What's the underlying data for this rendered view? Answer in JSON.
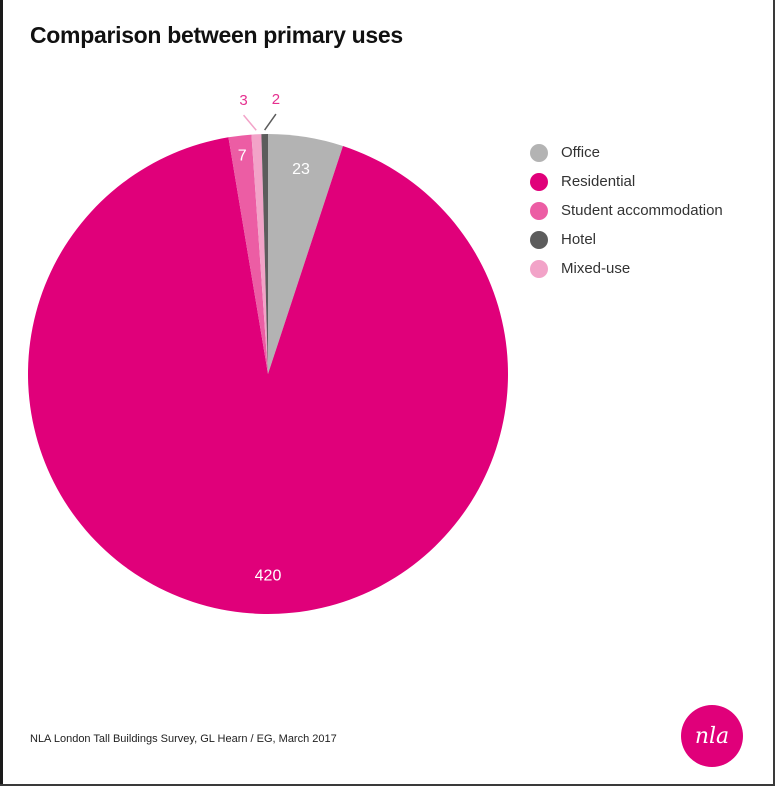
{
  "chart_data": {
    "type": "pie",
    "title": "Comparison between primary uses",
    "categories": [
      "Office",
      "Residential",
      "Student accommodation",
      "Hotel",
      "Mixed-use"
    ],
    "values": [
      23,
      420,
      7,
      2,
      3
    ],
    "slice_order": [
      "Office",
      "Residential",
      "Student accommodation",
      "Mixed-use",
      "Hotel"
    ],
    "data_labels": [
      "23",
      "420",
      "7",
      "2",
      "3"
    ],
    "colors": {
      "Office": "#b3b3b3",
      "Residential": "#e0007a",
      "Student accommodation": "#ec5da4",
      "Hotel": "#5c5c5c",
      "Mixed-use": "#f2a3c8"
    },
    "legend": {
      "position": "right",
      "items": [
        {
          "label": "Office",
          "color": "#b3b3b3"
        },
        {
          "label": "Residential",
          "color": "#e0007a"
        },
        {
          "label": "Student accommodation",
          "color": "#ec5da4"
        },
        {
          "label": "Hotel",
          "color": "#5c5c5c"
        },
        {
          "label": "Mixed-use",
          "color": "#f2a3c8"
        }
      ]
    }
  },
  "source_text": "NLA London Tall Buildings Survey, GL Hearn / EG, March 2017",
  "logo_text": "nla"
}
